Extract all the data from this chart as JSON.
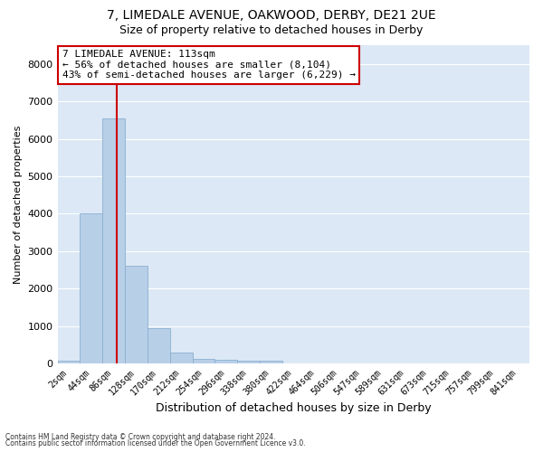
{
  "title1": "7, LIMEDALE AVENUE, OAKWOOD, DERBY, DE21 2UE",
  "title2": "Size of property relative to detached houses in Derby",
  "xlabel": "Distribution of detached houses by size in Derby",
  "ylabel": "Number of detached properties",
  "annotation_title": "7 LIMEDALE AVENUE: 113sqm",
  "annotation_line1": "← 56% of detached houses are smaller (8,104)",
  "annotation_line2": "43% of semi-detached houses are larger (6,229) →",
  "footer1": "Contains HM Land Registry data © Crown copyright and database right 2024.",
  "footer2": "Contains public sector information licensed under the Open Government Licence v3.0.",
  "bar_labels": [
    "2sqm",
    "44sqm",
    "86sqm",
    "128sqm",
    "170sqm",
    "212sqm",
    "254sqm",
    "296sqm",
    "338sqm",
    "380sqm",
    "422sqm",
    "464sqm",
    "506sqm",
    "547sqm",
    "589sqm",
    "631sqm",
    "673sqm",
    "715sqm",
    "757sqm",
    "799sqm",
    "841sqm"
  ],
  "bar_values": [
    80,
    4000,
    6550,
    2600,
    950,
    300,
    120,
    100,
    80,
    80,
    0,
    0,
    0,
    0,
    0,
    0,
    0,
    0,
    0,
    0,
    0
  ],
  "bar_color": "#b8cfe8",
  "bar_edge_color": "#8ab0d0",
  "property_line_color": "#cc0000",
  "ylim_max": 8500,
  "ytick_step": 1000,
  "bg_color": "#dce8f5",
  "grid_color": "#ffffff",
  "annotation_box_facecolor": "#ffffff",
  "annotation_box_edgecolor": "#cc0000",
  "title1_fontsize": 10,
  "title2_fontsize": 9,
  "ylabel_fontsize": 8,
  "xlabel_fontsize": 9,
  "annotation_fontsize": 8,
  "tick_fontsize": 7,
  "footer_fontsize": 5.5
}
